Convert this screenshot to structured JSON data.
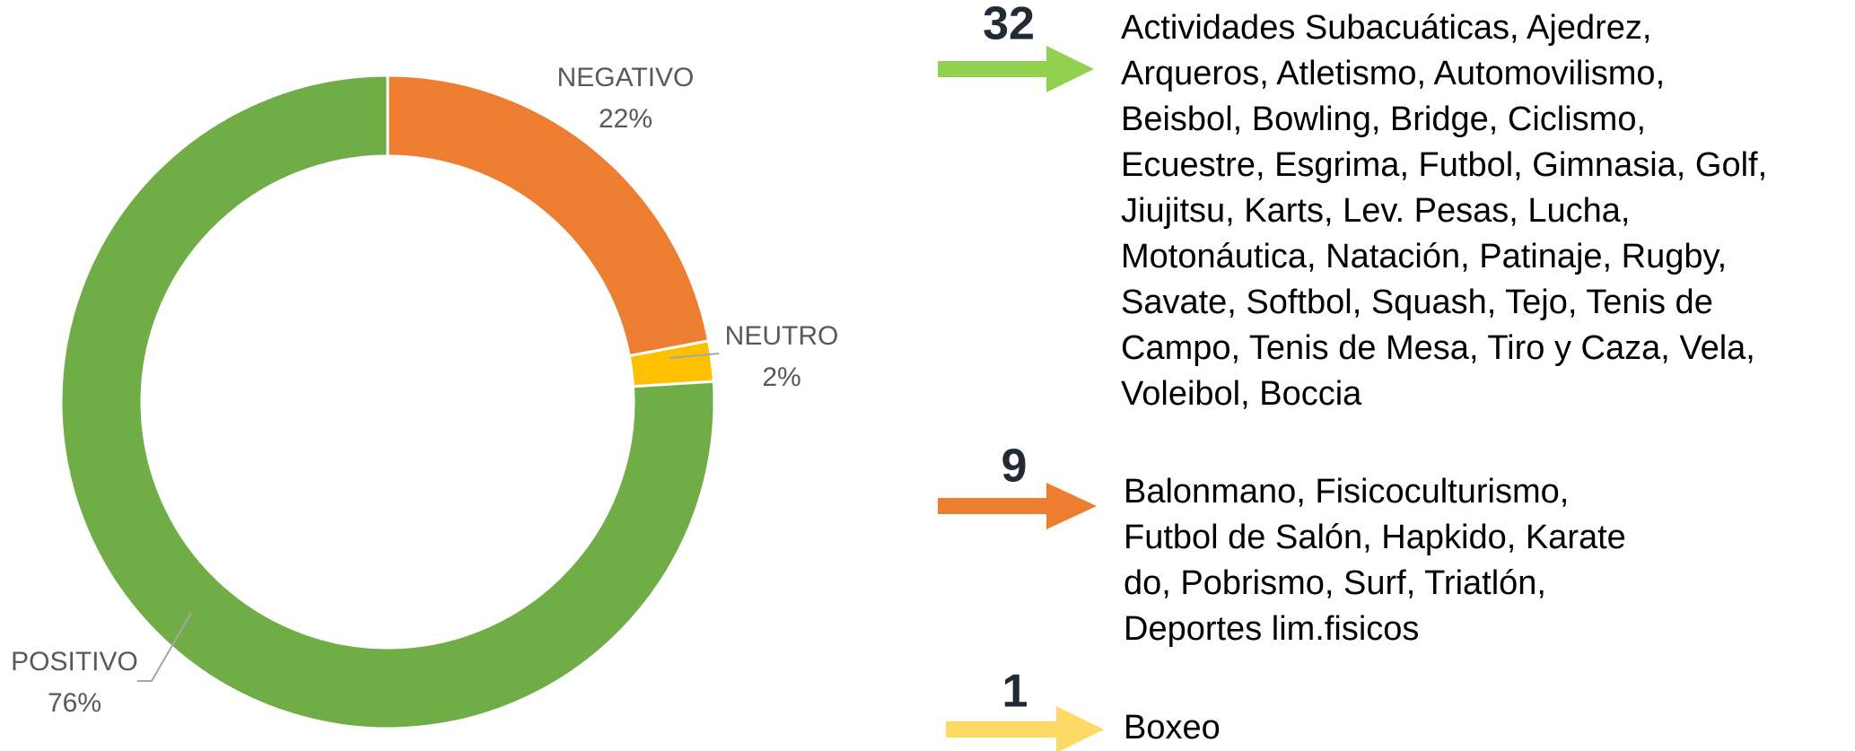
{
  "chart_data": {
    "type": "pie",
    "donut": true,
    "categories": [
      "NEGATIVO",
      "NEUTRO",
      "POSITIVO"
    ],
    "values": [
      22,
      2,
      76
    ],
    "value_labels": [
      "22%",
      "2%",
      "76%"
    ],
    "colors": [
      "#ed7d31",
      "#ffc000",
      "#70ad47"
    ]
  },
  "groups": [
    {
      "count": 32,
      "color": "#92d050",
      "lines": [
        "Actividades Subacuáticas, Ajedrez,",
        "Arqueros, Atletismo, Automovilismo,",
        "Beisbol, Bowling, Bridge, Ciclismo,",
        "Ecuestre, Esgrima, Futbol, Gimnasia, Golf,",
        "Jiujitsu, Karts, Lev. Pesas, Lucha,",
        "Motonáutica, Natación, Patinaje, Rugby,",
        "Savate, Softbol, Squash, Tejo, Tenis de",
        "Campo, Tenis de Mesa, Tiro y Caza, Vela,",
        "Voleibol, Boccia"
      ]
    },
    {
      "count": 9,
      "color": "#ed7d31",
      "lines": [
        "Balonmano, Fisicoculturismo,",
        "Futbol de Salón, Hapkido, Karate",
        "do, Pobrismo, Surf, Triatlón,",
        "Deportes lim.fisicos"
      ]
    },
    {
      "count": 1,
      "color": "#ffd966",
      "lines": [
        "Boxeo"
      ]
    }
  ]
}
